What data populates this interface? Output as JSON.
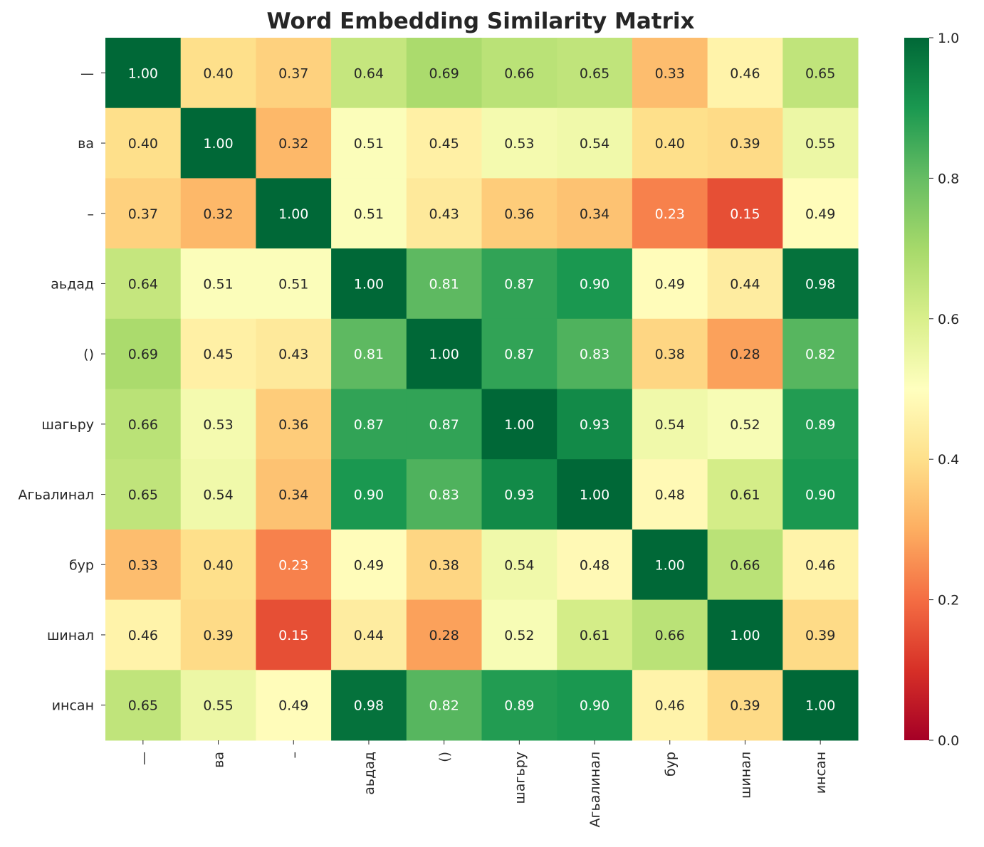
{
  "chart_data": {
    "type": "heatmap",
    "title": "Word Embedding Similarity Matrix",
    "xlabel": "",
    "ylabel": "",
    "row_labels": [
      "—",
      "ва",
      "–",
      "аьдад",
      "()",
      "шагьру",
      "Агьалинал",
      "бур",
      "шинал",
      "инсан"
    ],
    "col_labels": [
      "—",
      "ва",
      "–",
      "аьдад",
      "()",
      "шагьру",
      "Агьалинал",
      "бур",
      "шинал",
      "инсан"
    ],
    "values": [
      [
        1.0,
        0.4,
        0.37,
        0.64,
        0.69,
        0.66,
        0.65,
        0.33,
        0.46,
        0.65
      ],
      [
        0.4,
        1.0,
        0.32,
        0.51,
        0.45,
        0.53,
        0.54,
        0.4,
        0.39,
        0.55
      ],
      [
        0.37,
        0.32,
        1.0,
        0.51,
        0.43,
        0.36,
        0.34,
        0.23,
        0.15,
        0.49
      ],
      [
        0.64,
        0.51,
        0.51,
        1.0,
        0.81,
        0.87,
        0.9,
        0.49,
        0.44,
        0.98
      ],
      [
        0.69,
        0.45,
        0.43,
        0.81,
        1.0,
        0.87,
        0.83,
        0.38,
        0.28,
        0.82
      ],
      [
        0.66,
        0.53,
        0.36,
        0.87,
        0.87,
        1.0,
        0.93,
        0.54,
        0.52,
        0.89
      ],
      [
        0.65,
        0.54,
        0.34,
        0.9,
        0.83,
        0.93,
        1.0,
        0.48,
        0.61,
        0.9
      ],
      [
        0.33,
        0.4,
        0.23,
        0.49,
        0.38,
        0.54,
        0.48,
        1.0,
        0.66,
        0.46
      ],
      [
        0.46,
        0.39,
        0.15,
        0.44,
        0.28,
        0.52,
        0.61,
        0.66,
        1.0,
        0.39
      ],
      [
        0.65,
        0.55,
        0.49,
        0.98,
        0.82,
        0.89,
        0.9,
        0.46,
        0.39,
        1.0
      ]
    ],
    "colormap": "RdYlGn",
    "colormap_stops": [
      "#a50026",
      "#d73027",
      "#f46d43",
      "#fdae61",
      "#fee08b",
      "#ffffbf",
      "#d9ef8b",
      "#a6d96a",
      "#66bd63",
      "#1a9850",
      "#006837"
    ],
    "vlim": [
      0,
      1
    ],
    "colorbar_ticks": [
      "0.0",
      "0.2",
      "0.4",
      "0.6",
      "0.8",
      "1.0"
    ],
    "annotation_format": "0.00",
    "grid": false,
    "colorbar_placement": "right"
  }
}
